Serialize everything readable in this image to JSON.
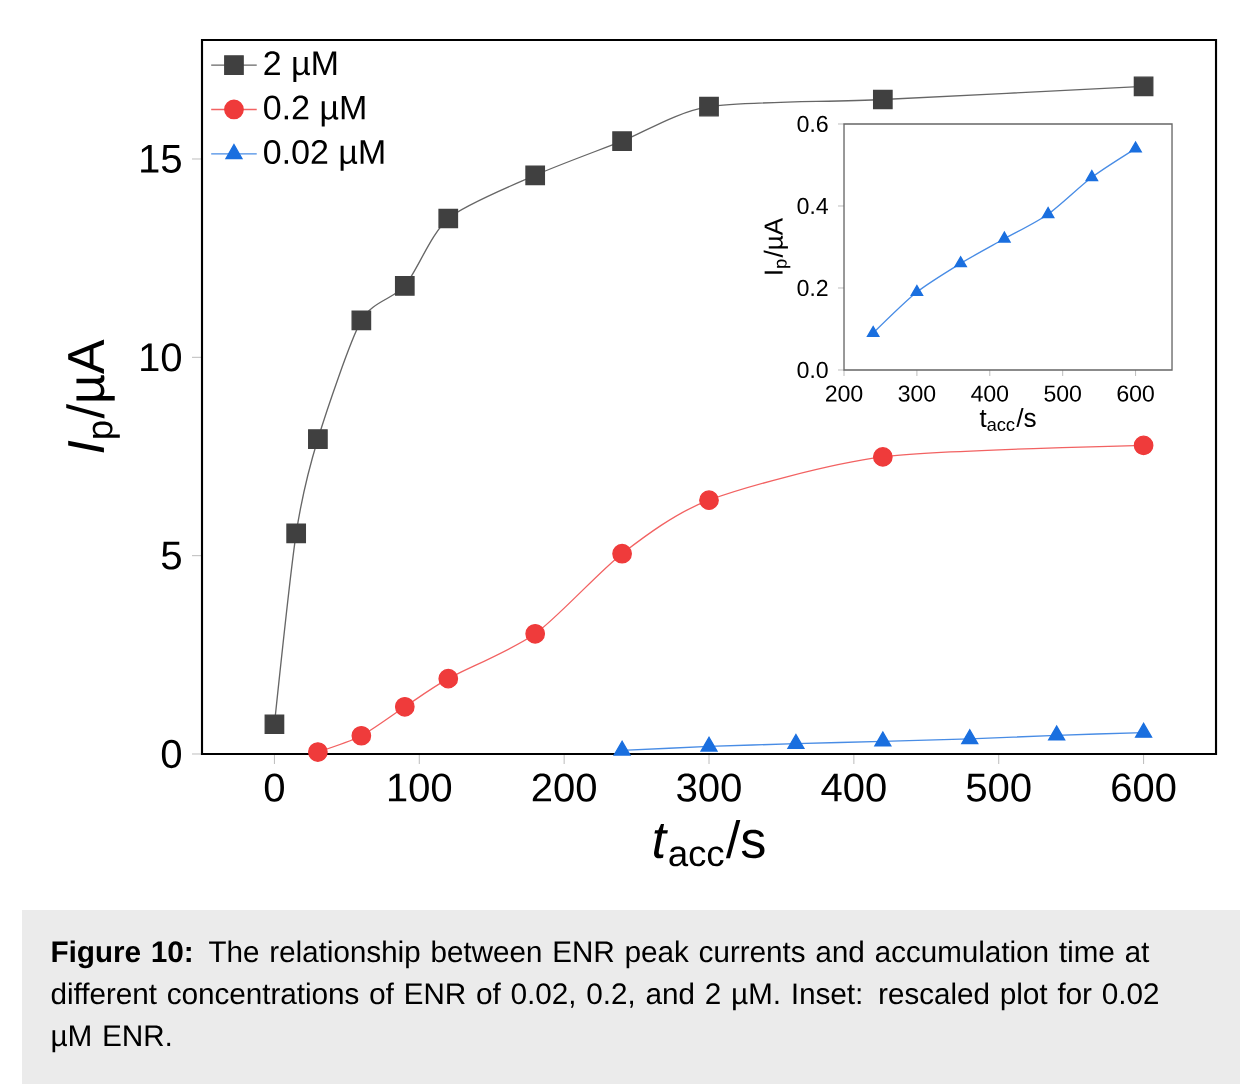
{
  "chart_data": [
    {
      "type": "line",
      "xlabel": "*t*$_{acc}$/s",
      "ylabel": "*I*$_{p}$/µA",
      "annotations": [
        "**Figure 10:** The relationship between ENR peak currents and accumulation time at different concentrations of ENR of 0.02, 0.2, and 2 µM. Inset: rescaled plot for 0.02 µM ENR."
      ],
      "xlim": [
        -50,
        650
      ],
      "ylim": [
        0,
        18
      ],
      "xticks": [
        0,
        100,
        200,
        300,
        400,
        500,
        600
      ],
      "yticks": [
        0,
        5,
        10,
        15
      ],
      "legend": "top left",
      "series": [
        {
          "name": "2 µM",
          "color": "#404040",
          "marker": "square",
          "x": [
            0,
            15,
            30,
            60,
            90,
            120,
            180,
            240,
            300,
            420,
            600
          ],
          "values": [
            0.75,
            5.56,
            7.94,
            10.93,
            11.8,
            13.5,
            14.59,
            15.45,
            16.32,
            16.5,
            16.83
          ]
        },
        {
          "name": "0.2 µM",
          "color": "#ef3b3b",
          "marker": "circle",
          "x": [
            30,
            60,
            90,
            120,
            180,
            240,
            300,
            420,
            600
          ],
          "values": [
            0.05,
            0.46,
            1.19,
            1.9,
            3.03,
            5.05,
            6.4,
            7.49,
            7.78
          ]
        },
        {
          "name": "0.02 µM",
          "color": "#1a6fdf",
          "marker": "triangle",
          "x": [
            240,
            300,
            360,
            420,
            480,
            540,
            600
          ],
          "values": [
            0.09,
            0.19,
            0.26,
            0.32,
            0.38,
            0.47,
            0.54
          ]
        }
      ]
    },
    {
      "type": "line",
      "xlabel": "t$_{acc}$/s",
      "ylabel": "I$_{p}$/µA",
      "xlim": [
        200,
        650
      ],
      "ylim": [
        0,
        0.6
      ],
      "xticks": [
        200,
        300,
        400,
        500,
        600
      ],
      "yticks": [
        {
          "value": 0,
          "label": "0.0"
        },
        0.2,
        0.4,
        0.6
      ],
      "series": [
        {
          "color": "#1a6fdf",
          "marker": "triangle",
          "x": [
            240,
            300,
            360,
            420,
            480,
            540,
            600
          ],
          "values": [
            0.09,
            0.19,
            0.26,
            0.32,
            0.38,
            0.47,
            0.54
          ]
        }
      ]
    }
  ]
}
